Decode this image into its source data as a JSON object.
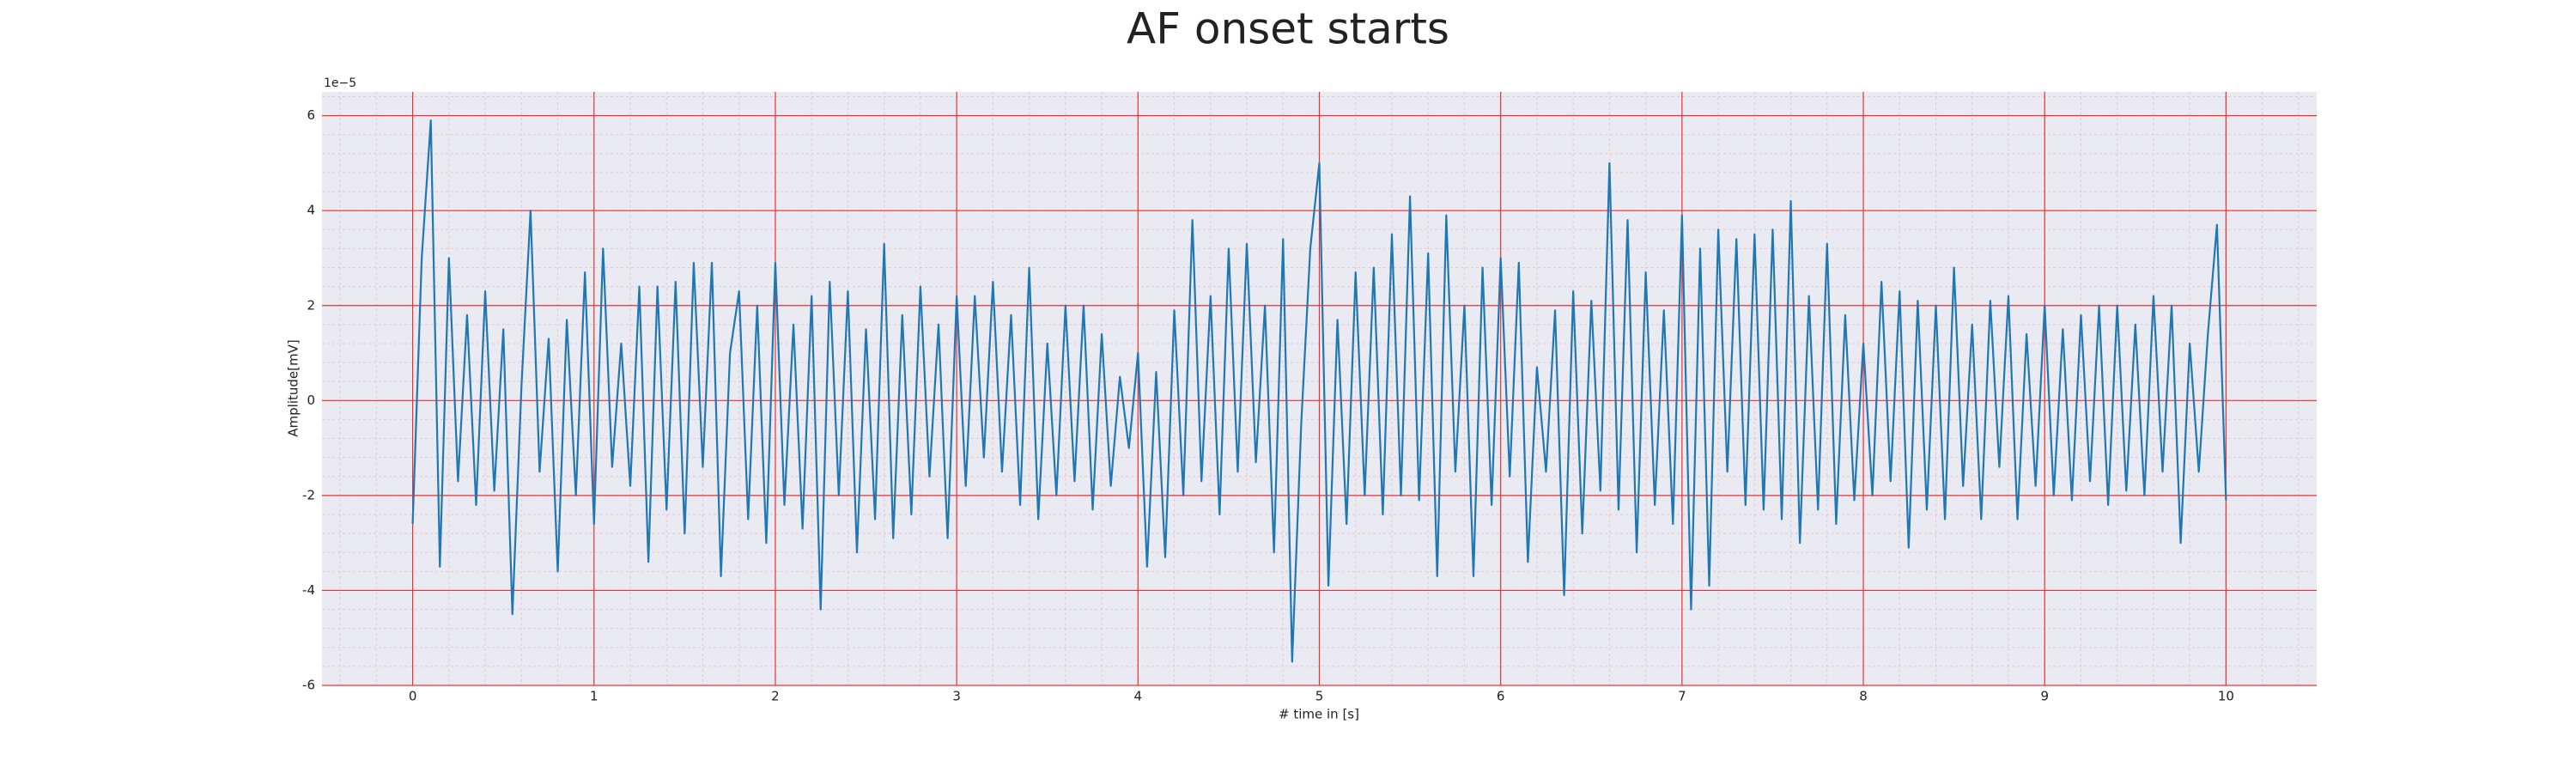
{
  "chart_data": {
    "type": "line",
    "title": "AF onset starts",
    "x_label": "# time in [s]",
    "y_label": "Amplitude[mV]",
    "y_offset_label": "1e−5",
    "x": [
      0,
      0.05,
      0.1,
      0.15,
      0.2,
      0.25,
      0.3,
      0.35,
      0.4,
      0.45,
      0.5,
      0.55,
      0.6,
      0.65,
      0.7,
      0.75,
      0.8,
      0.85,
      0.9,
      0.95,
      1,
      1.05,
      1.1,
      1.15,
      1.2,
      1.25,
      1.3,
      1.35,
      1.4,
      1.45,
      1.5,
      1.55,
      1.6,
      1.65,
      1.7,
      1.75,
      1.8,
      1.85,
      1.9,
      1.95,
      2,
      2.05,
      2.1,
      2.15,
      2.2,
      2.25,
      2.3,
      2.35,
      2.4,
      2.45,
      2.5,
      2.55,
      2.6,
      2.65,
      2.7,
      2.75,
      2.8,
      2.85,
      2.9,
      2.95,
      3,
      3.05,
      3.1,
      3.15,
      3.2,
      3.25,
      3.3,
      3.35,
      3.4,
      3.45,
      3.5,
      3.55,
      3.6,
      3.65,
      3.7,
      3.75,
      3.8,
      3.85,
      3.9,
      3.95,
      4,
      4.05,
      4.1,
      4.15,
      4.2,
      4.25,
      4.3,
      4.35,
      4.4,
      4.45,
      4.5,
      4.55,
      4.6,
      4.65,
      4.7,
      4.75,
      4.8,
      4.85,
      4.9,
      4.95,
      5,
      5.05,
      5.1,
      5.15,
      5.2,
      5.25,
      5.3,
      5.35,
      5.4,
      5.45,
      5.5,
      5.55,
      5.6,
      5.65,
      5.7,
      5.75,
      5.8,
      5.85,
      5.9,
      5.95,
      6,
      6.05,
      6.1,
      6.15,
      6.2,
      6.25,
      6.3,
      6.35,
      6.4,
      6.45,
      6.5,
      6.55,
      6.6,
      6.65,
      6.7,
      6.75,
      6.8,
      6.85,
      6.9,
      6.95,
      7,
      7.05,
      7.1,
      7.15,
      7.2,
      7.25,
      7.3,
      7.35,
      7.4,
      7.45,
      7.5,
      7.55,
      7.6,
      7.65,
      7.7,
      7.75,
      7.8,
      7.85,
      7.9,
      7.95,
      8,
      8.05,
      8.1,
      8.15,
      8.2,
      8.25,
      8.3,
      8.35,
      8.4,
      8.45,
      8.5,
      8.55,
      8.6,
      8.65,
      8.7,
      8.75,
      8.8,
      8.85,
      8.9,
      8.95,
      9,
      9.05,
      9.1,
      9.15,
      9.2,
      9.25,
      9.3,
      9.35,
      9.4,
      9.45,
      9.5,
      9.55,
      9.6,
      9.65,
      9.7,
      9.75,
      9.8,
      9.85,
      9.9,
      9.95,
      10
    ],
    "series": [
      {
        "color": "#1f77b4",
        "values": [
          -2.6,
          3.0,
          5.9,
          -3.5,
          3.0,
          -1.7,
          1.8,
          -2.2,
          2.3,
          -1.9,
          1.5,
          -4.5,
          0.3,
          4.0,
          -1.5,
          1.3,
          -3.6,
          1.7,
          -2.0,
          2.7,
          -2.6,
          3.2,
          -1.4,
          1.2,
          -1.8,
          2.4,
          -3.4,
          2.4,
          -2.3,
          2.5,
          -2.8,
          2.9,
          -1.4,
          2.9,
          -3.7,
          1.0,
          2.3,
          -2.5,
          2.0,
          -3.0,
          2.9,
          -2.2,
          1.6,
          -2.7,
          2.2,
          -4.4,
          2.5,
          -2.0,
          2.3,
          -3.2,
          1.5,
          -2.5,
          3.3,
          -2.9,
          1.8,
          -2.4,
          2.4,
          -1.6,
          1.6,
          -2.9,
          2.2,
          -1.8,
          2.2,
          -1.2,
          2.5,
          -1.5,
          1.8,
          -2.2,
          2.8,
          -2.5,
          1.2,
          -2.0,
          2.0,
          -1.7,
          2.0,
          -2.3,
          1.4,
          -1.8,
          0.5,
          -1.0,
          1.0,
          -3.5,
          0.6,
          -3.3,
          1.9,
          -2.0,
          3.8,
          -1.7,
          2.2,
          -2.4,
          3.2,
          -1.5,
          3.3,
          -1.3,
          2.0,
          -3.2,
          3.4,
          -5.5,
          -0.5,
          3.2,
          5.0,
          -3.9,
          1.7,
          -2.6,
          2.7,
          -2.0,
          2.8,
          -2.4,
          3.5,
          -2.0,
          4.3,
          -2.1,
          3.1,
          -3.7,
          3.9,
          -1.5,
          2.0,
          -3.7,
          2.8,
          -2.2,
          3.0,
          -1.6,
          2.9,
          -3.4,
          0.7,
          -1.5,
          1.9,
          -4.1,
          2.3,
          -2.8,
          2.1,
          -1.9,
          5.0,
          -2.3,
          3.8,
          -3.2,
          2.7,
          -2.2,
          1.9,
          -2.6,
          3.9,
          -4.4,
          3.2,
          -3.9,
          3.6,
          -1.5,
          3.4,
          -2.2,
          3.5,
          -2.3,
          3.6,
          -2.5,
          4.2,
          -3.0,
          2.2,
          -2.3,
          3.3,
          -2.6,
          1.8,
          -2.1,
          1.2,
          -2.0,
          2.5,
          -1.7,
          2.3,
          -3.1,
          2.1,
          -2.3,
          2.0,
          -2.5,
          2.8,
          -1.8,
          1.6,
          -2.5,
          2.1,
          -1.4,
          2.2,
          -2.5,
          1.4,
          -1.8,
          2.0,
          -2.0,
          1.5,
          -2.1,
          1.8,
          -1.7,
          2.0,
          -2.2,
          2.0,
          -1.9,
          1.6,
          -2.0,
          2.2,
          -1.5,
          2.0,
          -3.0,
          1.2,
          -1.5,
          1.4,
          3.7,
          -2.1
        ]
      }
    ],
    "xlim": [
      -0.5,
      10.5
    ],
    "xticks": [
      0,
      1,
      2,
      3,
      4,
      5,
      6,
      7,
      8,
      9,
      10
    ],
    "ylim": [
      -6,
      6.5
    ],
    "yticks": [
      -6,
      -4,
      -2,
      0,
      2,
      4,
      6
    ],
    "grid": true,
    "grid_color": "#f03030",
    "minor_grid": true,
    "background": "#eaeaf2"
  }
}
